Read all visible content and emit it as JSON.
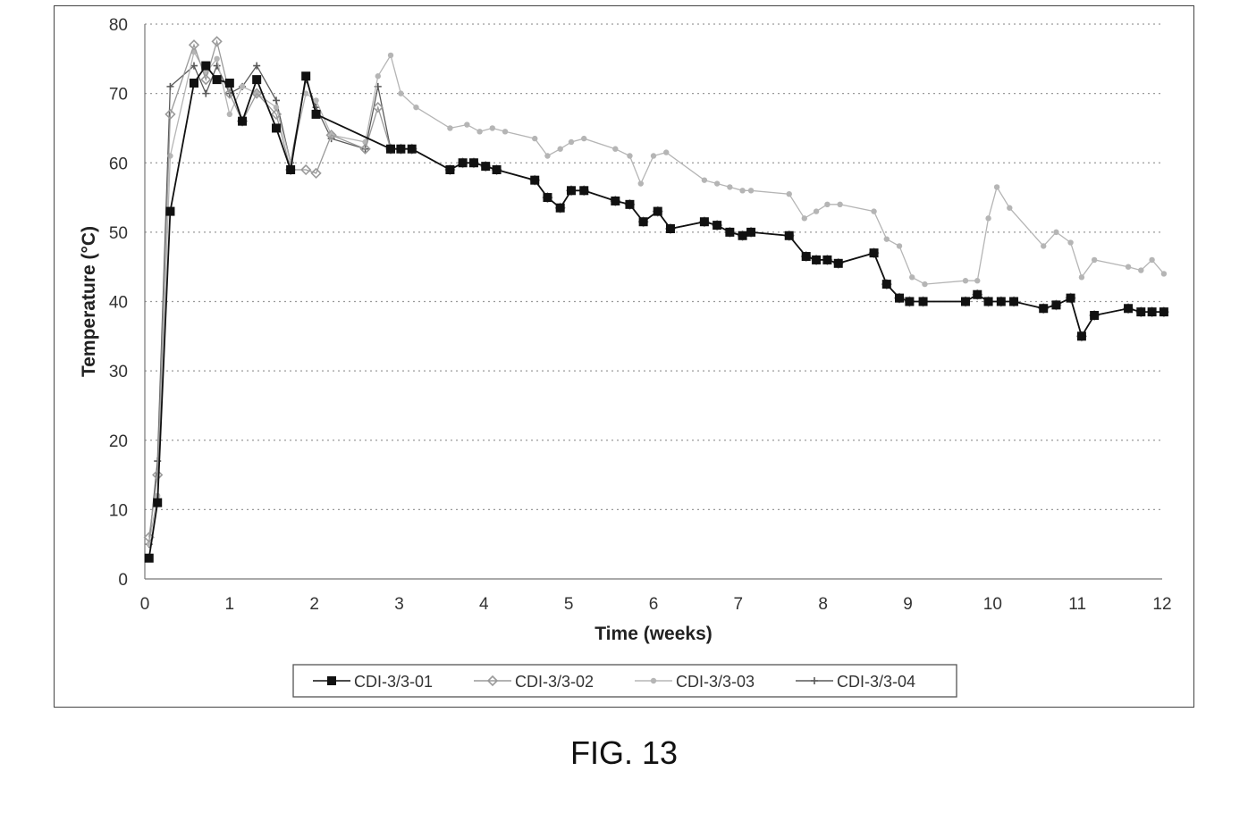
{
  "caption": "FIG. 13",
  "chart_data": {
    "type": "line",
    "xlabel": "Time (weeks)",
    "ylabel": "Temperature (°C)",
    "xlim": [
      0,
      12
    ],
    "ylim": [
      0,
      80
    ],
    "xticks": [
      0,
      1,
      2,
      3,
      4,
      5,
      6,
      7,
      8,
      9,
      10,
      11,
      12
    ],
    "yticks": [
      0,
      10,
      20,
      30,
      40,
      50,
      60,
      70,
      80
    ],
    "grid": "horizontal-dotted",
    "legend_position": "bottom",
    "series": [
      {
        "name": "CDI-3/3-01",
        "color": "#111111",
        "marker": "square",
        "points": [
          [
            0.05,
            3
          ],
          [
            0.15,
            11
          ],
          [
            0.3,
            53
          ],
          [
            0.58,
            71.5
          ],
          [
            0.72,
            74
          ],
          [
            0.85,
            72
          ],
          [
            1,
            71.5
          ],
          [
            1.15,
            66
          ],
          [
            1.32,
            72
          ],
          [
            1.55,
            65
          ],
          [
            1.72,
            59
          ],
          [
            1.9,
            72.5
          ],
          [
            2.02,
            67
          ],
          [
            2.9,
            62
          ],
          [
            3.02,
            62
          ],
          [
            3.15,
            62
          ],
          [
            3.6,
            59
          ],
          [
            3.75,
            60
          ],
          [
            3.88,
            60
          ],
          [
            4.02,
            59.5
          ],
          [
            4.15,
            59
          ],
          [
            4.6,
            57.5
          ],
          [
            4.75,
            55
          ],
          [
            4.9,
            53.5
          ],
          [
            5.03,
            56
          ],
          [
            5.18,
            56
          ],
          [
            5.55,
            54.5
          ],
          [
            5.72,
            54
          ],
          [
            5.88,
            51.5
          ],
          [
            6.05,
            53
          ],
          [
            6.2,
            50.5
          ],
          [
            6.6,
            51.5
          ],
          [
            6.75,
            51
          ],
          [
            6.9,
            50
          ],
          [
            7.05,
            49.5
          ],
          [
            7.15,
            50
          ],
          [
            7.6,
            49.5
          ],
          [
            7.8,
            46.5
          ],
          [
            7.92,
            46
          ],
          [
            8.05,
            46
          ],
          [
            8.18,
            45.5
          ],
          [
            8.6,
            47
          ],
          [
            8.75,
            42.5
          ],
          [
            8.9,
            40.5
          ],
          [
            9.02,
            40
          ],
          [
            9.18,
            40
          ],
          [
            9.68,
            40
          ],
          [
            9.82,
            41
          ],
          [
            9.95,
            40
          ],
          [
            10.1,
            40
          ],
          [
            10.25,
            40
          ],
          [
            10.6,
            39
          ],
          [
            10.75,
            39.5
          ],
          [
            10.92,
            40.5
          ],
          [
            11.05,
            35
          ],
          [
            11.2,
            38
          ],
          [
            11.6,
            39
          ],
          [
            11.75,
            38.5
          ],
          [
            11.88,
            38.5
          ],
          [
            12.02,
            38.5
          ]
        ]
      },
      {
        "name": "CDI-3/3-02",
        "color": "#9a9a9a",
        "marker": "diamond",
        "points": [
          [
            0.05,
            6
          ],
          [
            0.15,
            15
          ],
          [
            0.3,
            67
          ],
          [
            0.58,
            77
          ],
          [
            0.72,
            72
          ],
          [
            0.85,
            77.5
          ],
          [
            1,
            70
          ],
          [
            1.15,
            66
          ],
          [
            1.32,
            70
          ],
          [
            1.55,
            67
          ],
          [
            1.72,
            59
          ],
          [
            1.9,
            59
          ],
          [
            2.02,
            58.5
          ],
          [
            2.2,
            64
          ],
          [
            2.6,
            62
          ],
          [
            2.75,
            68
          ],
          [
            2.9,
            62
          ],
          [
            3.02,
            62
          ],
          [
            3.15,
            62
          ],
          [
            3.6,
            59
          ],
          [
            3.75,
            60
          ],
          [
            3.88,
            60
          ],
          [
            4.02,
            59.5
          ],
          [
            4.15,
            59
          ],
          [
            4.6,
            57.5
          ],
          [
            4.75,
            55
          ],
          [
            4.9,
            53.5
          ],
          [
            5.03,
            56
          ],
          [
            5.18,
            56
          ],
          [
            5.55,
            54.5
          ],
          [
            5.72,
            54
          ],
          [
            5.88,
            51.5
          ],
          [
            6.05,
            53
          ],
          [
            6.2,
            50.5
          ],
          [
            6.6,
            51.5
          ],
          [
            6.75,
            51
          ],
          [
            6.9,
            50
          ],
          [
            7.05,
            49.5
          ],
          [
            7.15,
            50
          ],
          [
            7.6,
            49.5
          ],
          [
            7.8,
            46.5
          ],
          [
            7.92,
            46
          ],
          [
            8.05,
            46
          ],
          [
            8.18,
            45.5
          ],
          [
            8.6,
            47
          ],
          [
            8.75,
            42.5
          ],
          [
            8.9,
            40.5
          ],
          [
            9.02,
            40
          ],
          [
            9.18,
            40
          ],
          [
            9.68,
            40
          ],
          [
            9.82,
            41
          ],
          [
            9.95,
            40
          ],
          [
            10.1,
            40
          ],
          [
            10.25,
            40
          ],
          [
            10.6,
            39
          ],
          [
            10.75,
            39.5
          ],
          [
            10.92,
            40.5
          ],
          [
            11.05,
            35
          ],
          [
            11.2,
            38
          ],
          [
            11.6,
            39
          ],
          [
            11.75,
            38.5
          ],
          [
            11.88,
            38.5
          ],
          [
            12.02,
            38.5
          ]
        ]
      },
      {
        "name": "CDI-3/3-03",
        "color": "#b5b5b5",
        "marker": "circle",
        "points": [
          [
            0.05,
            5
          ],
          [
            0.15,
            12
          ],
          [
            0.3,
            61
          ],
          [
            0.58,
            76
          ],
          [
            0.72,
            73
          ],
          [
            0.85,
            75
          ],
          [
            1,
            67
          ],
          [
            1.15,
            71
          ],
          [
            1.32,
            70
          ],
          [
            1.55,
            68
          ],
          [
            1.72,
            60
          ],
          [
            1.9,
            70
          ],
          [
            2.02,
            69
          ],
          [
            2.2,
            64
          ],
          [
            2.6,
            63
          ],
          [
            2.75,
            72.5
          ],
          [
            2.9,
            75.5
          ],
          [
            3.02,
            70
          ],
          [
            3.2,
            68
          ],
          [
            3.6,
            65
          ],
          [
            3.8,
            65.5
          ],
          [
            3.95,
            64.5
          ],
          [
            4.1,
            65
          ],
          [
            4.25,
            64.5
          ],
          [
            4.6,
            63.5
          ],
          [
            4.75,
            61
          ],
          [
            4.9,
            62
          ],
          [
            5.03,
            63
          ],
          [
            5.18,
            63.5
          ],
          [
            5.55,
            62
          ],
          [
            5.72,
            61
          ],
          [
            5.85,
            57
          ],
          [
            6.0,
            61
          ],
          [
            6.15,
            61.5
          ],
          [
            6.6,
            57.5
          ],
          [
            6.75,
            57
          ],
          [
            6.9,
            56.5
          ],
          [
            7.05,
            56
          ],
          [
            7.15,
            56
          ],
          [
            7.6,
            55.5
          ],
          [
            7.78,
            52
          ],
          [
            7.92,
            53
          ],
          [
            8.05,
            54
          ],
          [
            8.2,
            54
          ],
          [
            8.6,
            53
          ],
          [
            8.75,
            49
          ],
          [
            8.9,
            48
          ],
          [
            9.05,
            43.5
          ],
          [
            9.2,
            42.5
          ],
          [
            9.68,
            43
          ],
          [
            9.82,
            43
          ],
          [
            9.95,
            52
          ],
          [
            10.05,
            56.5
          ],
          [
            10.2,
            53.5
          ],
          [
            10.6,
            48
          ],
          [
            10.75,
            50
          ],
          [
            10.92,
            48.5
          ],
          [
            11.05,
            43.5
          ],
          [
            11.2,
            46
          ],
          [
            11.6,
            45
          ],
          [
            11.75,
            44.5
          ],
          [
            11.88,
            46
          ],
          [
            12.02,
            44
          ]
        ]
      },
      {
        "name": "CDI-3/3-04",
        "color": "#5a5a5a",
        "marker": "star",
        "points": [
          [
            0.05,
            5
          ],
          [
            0.15,
            17
          ],
          [
            0.3,
            71
          ],
          [
            0.58,
            74
          ],
          [
            0.72,
            70
          ],
          [
            0.85,
            74
          ],
          [
            1,
            70
          ],
          [
            1.15,
            71
          ],
          [
            1.32,
            74
          ],
          [
            1.55,
            69
          ],
          [
            1.72,
            60
          ],
          [
            1.9,
            72
          ],
          [
            2.02,
            68
          ],
          [
            2.2,
            63.5
          ],
          [
            2.6,
            62
          ],
          [
            2.75,
            71
          ],
          [
            2.9,
            62
          ],
          [
            3.02,
            62
          ],
          [
            3.15,
            62
          ],
          [
            3.6,
            59
          ],
          [
            3.75,
            60
          ],
          [
            3.88,
            60
          ],
          [
            4.02,
            59.5
          ],
          [
            4.15,
            59
          ],
          [
            4.6,
            57.5
          ],
          [
            4.75,
            55
          ],
          [
            4.9,
            53.5
          ],
          [
            5.03,
            56
          ],
          [
            5.18,
            56
          ],
          [
            5.55,
            54.5
          ],
          [
            5.72,
            54
          ],
          [
            5.88,
            51.5
          ],
          [
            6.05,
            53
          ],
          [
            6.2,
            50.5
          ],
          [
            6.6,
            51.5
          ],
          [
            6.75,
            51
          ],
          [
            6.9,
            50
          ],
          [
            7.05,
            49.5
          ],
          [
            7.15,
            50
          ],
          [
            7.6,
            49.5
          ],
          [
            7.8,
            46.5
          ],
          [
            7.92,
            46
          ],
          [
            8.05,
            46
          ],
          [
            8.18,
            45.5
          ],
          [
            8.6,
            47
          ],
          [
            8.75,
            42.5
          ],
          [
            8.9,
            40.5
          ],
          [
            9.02,
            40
          ],
          [
            9.18,
            40
          ],
          [
            9.68,
            40
          ],
          [
            9.82,
            41
          ],
          [
            9.95,
            40
          ],
          [
            10.1,
            40
          ],
          [
            10.25,
            40
          ],
          [
            10.6,
            39
          ],
          [
            10.75,
            39.5
          ],
          [
            10.92,
            40.5
          ],
          [
            11.05,
            35
          ],
          [
            11.2,
            38
          ],
          [
            11.6,
            39
          ],
          [
            11.75,
            38.5
          ],
          [
            11.88,
            38.5
          ],
          [
            12.02,
            38.5
          ]
        ]
      }
    ]
  }
}
